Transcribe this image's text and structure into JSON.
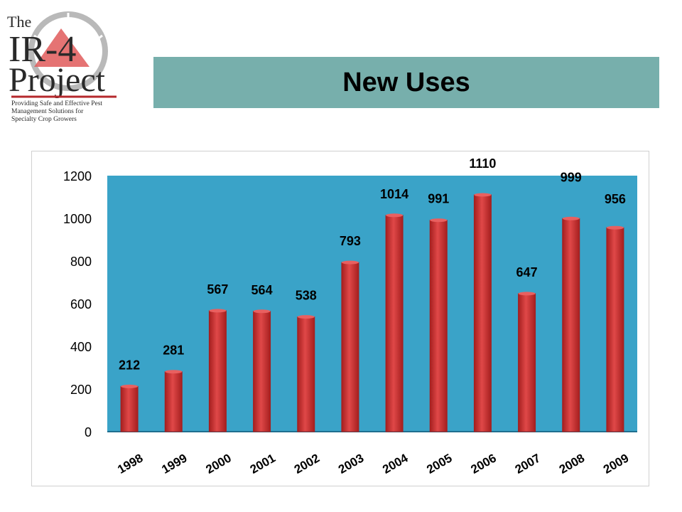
{
  "logo": {
    "line1": "The",
    "line2": "IR-4",
    "line3": "Project",
    "tagline_1": "Providing Safe and Effective Pest",
    "tagline_2": "Management Solutions for",
    "tagline_3": "Specialty Crop Growers",
    "colors": {
      "red": "#b5282c",
      "dark": "#2a2a2a",
      "ring": "#b9b9b9"
    }
  },
  "header": {
    "title": "New Uses"
  },
  "colors": {
    "title_bar": "#77afac",
    "plot_bg": "#3aa3c8",
    "bar": "#d83a3a",
    "bar_dark": "#a51f1f"
  },
  "chart_data": {
    "type": "bar",
    "title": "",
    "xlabel": "",
    "ylabel": "",
    "categories": [
      "1998",
      "1999",
      "2000",
      "2001",
      "2002",
      "2003",
      "2004",
      "2005",
      "2006",
      "2007",
      "2008",
      "2009"
    ],
    "values": [
      212,
      281,
      567,
      564,
      538,
      793,
      1014,
      991,
      1110,
      647,
      999,
      956
    ],
    "data_labels": [
      "212",
      "281",
      "567",
      "564",
      "538",
      "793",
      "1014",
      "991",
      "1110",
      "647",
      "999",
      "956"
    ],
    "ylim": [
      0,
      1200
    ],
    "yticks": [
      0,
      200,
      400,
      600,
      800,
      1000,
      1200
    ],
    "ytick_labels": [
      "0",
      "200",
      "400",
      "600",
      "800",
      "1000",
      "1200"
    ],
    "grid": false,
    "legend": "none"
  }
}
